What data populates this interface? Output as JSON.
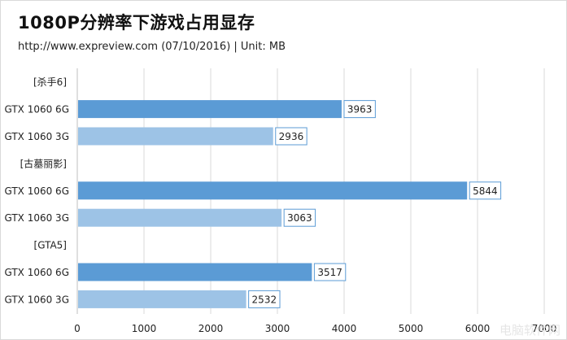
{
  "header": {
    "title": "1080P分辨率下游戏占用显存",
    "subtitle": "http://www.expreview.com (07/10/2016)   | Unit: MB"
  },
  "watermark": "电脑软件网",
  "colors": {
    "bar_6g": "#5b9bd5",
    "bar_3g": "#9dc3e6",
    "grid": "#d9d9d9",
    "label_border": "#5b9bd5"
  },
  "chart_data": {
    "type": "bar",
    "orientation": "horizontal",
    "xlim": [
      0,
      7000
    ],
    "xticks": [
      0,
      1000,
      2000,
      3000,
      4000,
      5000,
      6000,
      7000
    ],
    "grid": true,
    "rows": [
      {
        "label": "[杀手6]",
        "group_header": true
      },
      {
        "label": "GTX 1060 6G",
        "value": 3963,
        "series": "6G"
      },
      {
        "label": "GTX 1060 3G",
        "value": 2936,
        "series": "3G"
      },
      {
        "label": "[古墓丽影]",
        "group_header": true
      },
      {
        "label": "GTX 1060 6G",
        "value": 5844,
        "series": "6G"
      },
      {
        "label": "GTX 1060 3G",
        "value": 3063,
        "series": "3G"
      },
      {
        "label": "[GTA5]",
        "group_header": true
      },
      {
        "label": "GTX 1060 6G",
        "value": 3517,
        "series": "6G"
      },
      {
        "label": "GTX 1060 3G",
        "value": 2532,
        "series": "3G"
      }
    ]
  }
}
